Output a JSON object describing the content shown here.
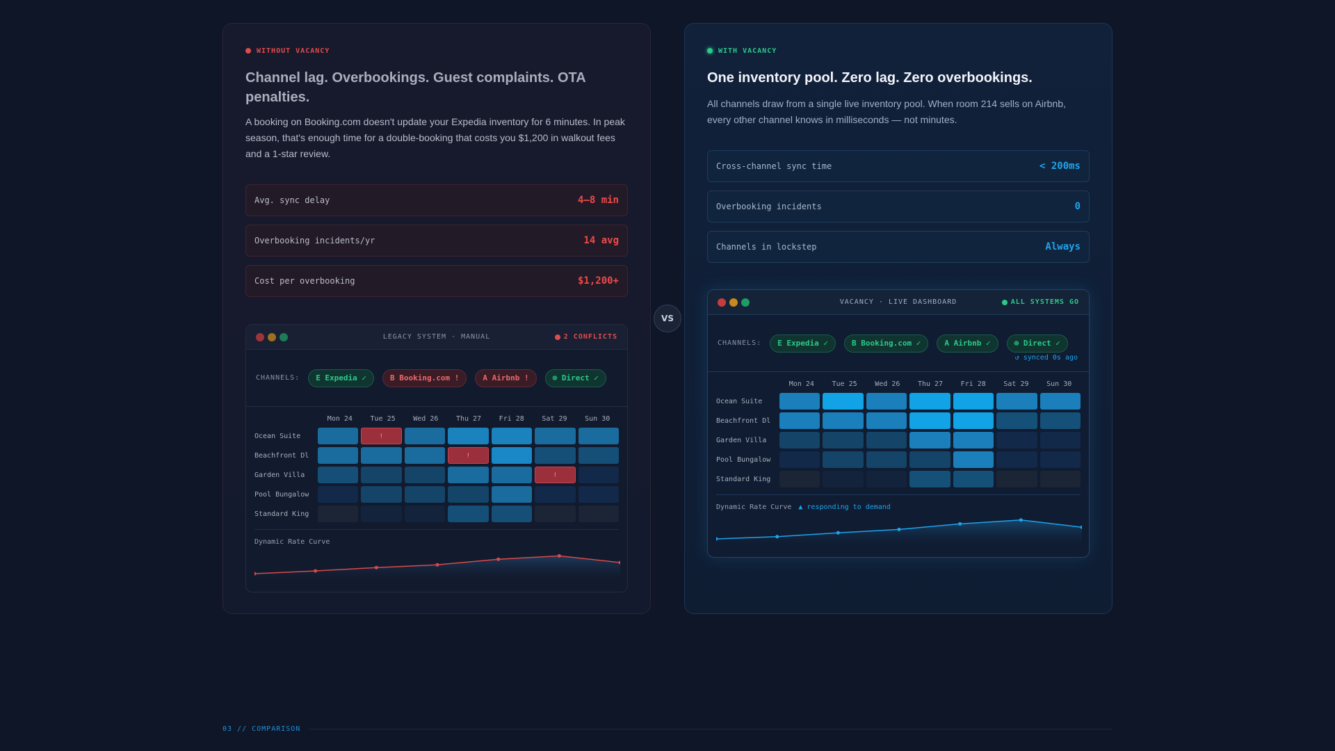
{
  "left": {
    "tag": "WITHOUT VACANCY",
    "heading": "Channel lag. Overbookings. Guest complaints. OTA penalties.",
    "description": "A booking on Booking.com doesn't update your Expedia inventory for 6 minutes. In peak season, that's enough time for a double-booking that costs you $1,200 in walkout fees and a 1-star review.",
    "stats": [
      {
        "label": "Avg. sync delay",
        "value": "4–8 min"
      },
      {
        "label": "Overbooking incidents/yr",
        "value": "14 avg"
      },
      {
        "label": "Cost per overbooking",
        "value": "$1,200+"
      }
    ],
    "dashboard": {
      "title": "LEGACY SYSTEM · MANUAL",
      "status": "2 CONFLICTS",
      "channels_label": "CHANNELS:",
      "channels": [
        {
          "label": "E Expedia ✓",
          "ok": true
        },
        {
          "label": "B Booking.com !",
          "ok": false
        },
        {
          "label": "A Airbnb !",
          "ok": false
        },
        {
          "label": "⊕ Direct ✓",
          "ok": true
        }
      ],
      "days": [
        "Mon 24",
        "Tue 25",
        "Wed 26",
        "Thu 27",
        "Fri 28",
        "Sat 29",
        "Sun 30"
      ],
      "rooms": [
        {
          "name": "Ocean Suite",
          "cells": [
            {
              "c": "#1a6c9e"
            },
            {
              "c": "conf",
              "mark": "!"
            },
            {
              "c": "#1a6c9e"
            },
            {
              "c": "#1a82bd"
            },
            {
              "c": "#1a82bd"
            },
            {
              "c": "#1a6c9e"
            },
            {
              "c": "#1a6c9e"
            }
          ]
        },
        {
          "name": "Beachfront Dl",
          "cells": [
            {
              "c": "#1a6c9e"
            },
            {
              "c": "#1a6c9e"
            },
            {
              "c": "#1a6c9e"
            },
            {
              "c": "conf",
              "mark": "!"
            },
            {
              "c": "#1a88c6"
            },
            {
              "c": "#154f78"
            },
            {
              "c": "#154f78"
            }
          ]
        },
        {
          "name": "Garden Villa",
          "cells": [
            {
              "c": "#154f78"
            },
            {
              "c": "#144468"
            },
            {
              "c": "#144468"
            },
            {
              "c": "#1a6c9e"
            },
            {
              "c": "#1a6c9e"
            },
            {
              "c": "conf",
              "mark": "!"
            },
            {
              "c": "#12294a"
            }
          ]
        },
        {
          "name": "Pool Bungalow",
          "cells": [
            {
              "c": "#12294a"
            },
            {
              "c": "#144468"
            },
            {
              "c": "#144468"
            },
            {
              "c": "#144468"
            },
            {
              "c": "#1a6c9e"
            },
            {
              "c": "#12294a"
            },
            {
              "c": "#12294a"
            }
          ]
        },
        {
          "name": "Standard King",
          "cells": [
            {
              "c": "#1c2535"
            },
            {
              "c": "#13233b"
            },
            {
              "c": "#13233b"
            },
            {
              "c": "#154f78"
            },
            {
              "c": "#154f78"
            },
            {
              "c": "#1c2535"
            },
            {
              "c": "#1c2535"
            }
          ]
        }
      ],
      "curve_label": "Dynamic Rate Curve",
      "curve_note": "",
      "curve_color": "#d94a4a",
      "curve_values": [
        10,
        15,
        21,
        26,
        36,
        42,
        30
      ]
    }
  },
  "right": {
    "tag": "WITH VACANCY",
    "heading": "One inventory pool. Zero lag. Zero overbookings.",
    "description": "All channels draw from a single live inventory pool. When room 214 sells on Airbnb, every other channel knows in milliseconds — not minutes.",
    "stats": [
      {
        "label": "Cross-channel sync time",
        "value": "< 200ms"
      },
      {
        "label": "Overbooking incidents",
        "value": "0"
      },
      {
        "label": "Channels in lockstep",
        "value": "Always"
      }
    ],
    "dashboard": {
      "title": "VACANCY · LIVE DASHBOARD",
      "status": "ALL SYSTEMS GO",
      "channels_label": "CHANNELS:",
      "channels": [
        {
          "label": "E Expedia ✓",
          "ok": true
        },
        {
          "label": "B Booking.com ✓",
          "ok": true
        },
        {
          "label": "A Airbnb ✓",
          "ok": true
        },
        {
          "label": "⊕ Direct ✓",
          "ok": true
        }
      ],
      "synced": "↺ synced 0s ago",
      "days": [
        "Mon 24",
        "Tue 25",
        "Wed 26",
        "Thu 27",
        "Fri 28",
        "Sat 29",
        "Sun 30"
      ],
      "rooms": [
        {
          "name": "Ocean Suite",
          "cells": [
            {
              "c": "#1a7fba"
            },
            {
              "c": "#12a2e6"
            },
            {
              "c": "#1a7fba"
            },
            {
              "c": "#12a2e6"
            },
            {
              "c": "#12a2e6"
            },
            {
              "c": "#1a7fba"
            },
            {
              "c": "#1a7fba"
            }
          ]
        },
        {
          "name": "Beachfront Dl",
          "cells": [
            {
              "c": "#1a7fba"
            },
            {
              "c": "#1a7fba"
            },
            {
              "c": "#1a7fba"
            },
            {
              "c": "#12a2e6"
            },
            {
              "c": "#12a2e6"
            },
            {
              "c": "#155079"
            },
            {
              "c": "#155079"
            }
          ]
        },
        {
          "name": "Garden Villa",
          "cells": [
            {
              "c": "#144468"
            },
            {
              "c": "#144468"
            },
            {
              "c": "#144468"
            },
            {
              "c": "#1a7fba"
            },
            {
              "c": "#1a7fba"
            },
            {
              "c": "#12294a"
            },
            {
              "c": "#12294a"
            }
          ]
        },
        {
          "name": "Pool Bungalow",
          "cells": [
            {
              "c": "#12294a"
            },
            {
              "c": "#144468"
            },
            {
              "c": "#144468"
            },
            {
              "c": "#144468"
            },
            {
              "c": "#1a7fba"
            },
            {
              "c": "#12294a"
            },
            {
              "c": "#12294a"
            }
          ]
        },
        {
          "name": "Standard King",
          "cells": [
            {
              "c": "#1c2535"
            },
            {
              "c": "#13233b"
            },
            {
              "c": "#13233b"
            },
            {
              "c": "#155079"
            },
            {
              "c": "#155079"
            },
            {
              "c": "#1c2535"
            },
            {
              "c": "#1c2535"
            }
          ]
        }
      ],
      "curve_label": "Dynamic Rate Curve",
      "curve_note": "▲ responding to demand",
      "curve_color": "#1fa3ec",
      "curve_values": [
        10,
        14,
        21,
        27,
        37,
        44,
        31
      ]
    }
  },
  "vs": "VS",
  "footer": "03 // COMPARISON"
}
